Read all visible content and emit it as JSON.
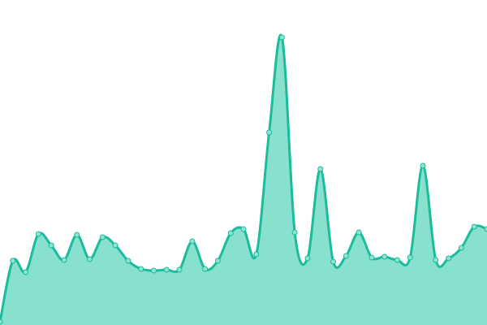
{
  "chart_data": {
    "type": "area",
    "title": "",
    "xlabel": "",
    "ylabel": "",
    "axes_visible": false,
    "grid": false,
    "legend": "none",
    "curve": "smooth",
    "markers": true,
    "ylim": [
      0,
      400
    ],
    "x": [
      0,
      1,
      2,
      3,
      4,
      5,
      6,
      7,
      8,
      9,
      10,
      11,
      12,
      13,
      14,
      15,
      16,
      17,
      18,
      19,
      20,
      21,
      22,
      23,
      24,
      25,
      26,
      27,
      28,
      29,
      30,
      31,
      32,
      33,
      34,
      35,
      36,
      37,
      38
    ],
    "series": [
      {
        "values": [
          4,
          79,
          65,
          112,
          98,
          80,
          111,
          81,
          108,
          98,
          79,
          69,
          67,
          68,
          68,
          103,
          69,
          79,
          113,
          118,
          87,
          237,
          354,
          114,
          82,
          192,
          78,
          85,
          114,
          83,
          84,
          80,
          83,
          196,
          80,
          82,
          95,
          121,
          118
        ],
        "line_color": "#1abc9c",
        "fill_color": "#88e0cf",
        "marker_color": "#8ee3d2"
      }
    ]
  }
}
